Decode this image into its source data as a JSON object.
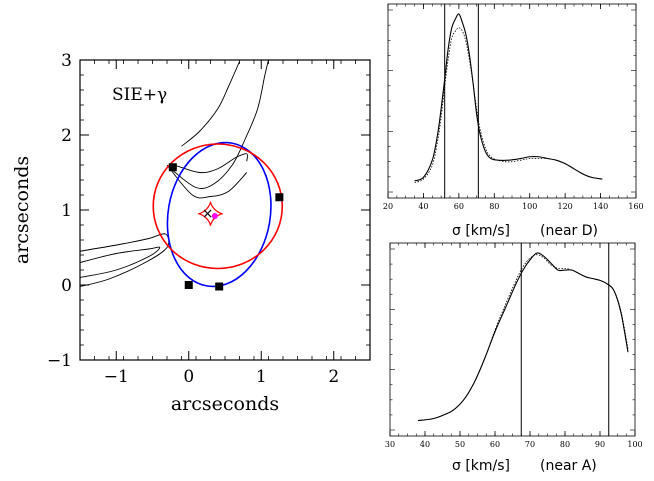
{
  "chart_data": [
    {
      "type": "scatter",
      "panel": "lens-model",
      "title": "SIE+γ",
      "xlabel": "arcseconds",
      "ylabel": "arcseconds",
      "xlim": [
        -1.5,
        2.5
      ],
      "ylim": [
        -1,
        3
      ],
      "x_ticks": [
        -1,
        0,
        1,
        2
      ],
      "y_ticks": [
        -1,
        0,
        1,
        2,
        3
      ],
      "x_tick_labels": [
        "−1",
        "0",
        "1",
        "2"
      ],
      "y_tick_labels": [
        "−1",
        "0",
        "1",
        "2",
        "3"
      ],
      "images": [
        {
          "x": -0.22,
          "y": 1.57
        },
        {
          "x": 1.25,
          "y": 1.17
        },
        {
          "x": 0.0,
          "y": 0.0
        },
        {
          "x": 0.42,
          "y": -0.02
        }
      ],
      "galaxy_center": {
        "x": 0.26,
        "y": 0.96,
        "marker": "×"
      },
      "source_position": {
        "x": 0.36,
        "y": 0.92,
        "color": "#ff00ff"
      },
      "critical_curve": {
        "color": "#ff0000",
        "cx": 0.4,
        "cy": 1.05,
        "rx": 0.89,
        "ry": 0.83,
        "tilt_deg": 0
      },
      "caustic": {
        "color": "#ff0000",
        "cx": 0.3,
        "cy": 0.95,
        "size": 0.17
      },
      "blue_curve": {
        "color": "#0000ff",
        "cx": 0.42,
        "cy": 0.94,
        "rx": 1.0,
        "ry": 0.68,
        "tilt_deg": 80
      },
      "arc_contours": [
        {
          "name": "upper-arc",
          "points": [
            [
              -0.25,
              1.55
            ],
            [
              0.1,
              1.3
            ],
            [
              0.35,
              1.35
            ],
            [
              0.6,
              1.6
            ],
            [
              0.78,
              1.95
            ],
            [
              0.95,
              2.35
            ],
            [
              1.05,
              2.8
            ],
            [
              1.1,
              3.0
            ]
          ]
        },
        {
          "name": "upper-arc-inner",
          "points": [
            [
              -0.2,
              1.6
            ],
            [
              0.15,
              1.5
            ],
            [
              0.4,
              1.55
            ],
            [
              0.65,
              1.7
            ],
            [
              0.8,
              1.75
            ],
            [
              0.8,
              1.65
            ]
          ]
        },
        {
          "name": "upper-arc-outer",
          "points": [
            [
              -0.3,
              1.6
            ],
            [
              0.05,
              1.2
            ],
            [
              0.3,
              1.18
            ],
            [
              0.55,
              1.25
            ],
            [
              0.8,
              1.5
            ]
          ]
        },
        {
          "name": "top-contour",
          "points": [
            [
              -0.1,
              1.85
            ],
            [
              0.15,
              2.05
            ],
            [
              0.4,
              2.35
            ],
            [
              0.55,
              2.65
            ],
            [
              0.7,
              2.98
            ]
          ]
        },
        {
          "name": "left-arc-1",
          "points": [
            [
              -1.5,
              0.45
            ],
            [
              -0.9,
              0.55
            ],
            [
              -0.55,
              0.62
            ],
            [
              -0.32,
              0.68
            ],
            [
              -0.3,
              0.5
            ],
            [
              -0.6,
              0.3
            ],
            [
              -1.1,
              0.08
            ],
            [
              -1.5,
              -0.02
            ]
          ]
        },
        {
          "name": "left-arc-2",
          "points": [
            [
              -1.5,
              0.3
            ],
            [
              -1.0,
              0.42
            ],
            [
              -0.55,
              0.48
            ],
            [
              -0.4,
              0.5
            ],
            [
              -0.55,
              0.38
            ],
            [
              -1.0,
              0.2
            ],
            [
              -1.5,
              0.1
            ]
          ]
        }
      ]
    },
    {
      "type": "line",
      "panel": "top-right",
      "xlabel": "σ [km/s]",
      "annotation": "(near D)",
      "xlim": [
        20,
        160
      ],
      "x_ticks": [
        20,
        40,
        60,
        80,
        100,
        120,
        140,
        160
      ],
      "x_tick_labels": [
        "20",
        "40",
        "60",
        "80",
        "100",
        "120",
        "140",
        "160"
      ],
      "ylim": [
        0,
        1
      ],
      "vertical_lines": [
        52,
        71
      ],
      "series": [
        {
          "name": "solid",
          "style": "solid",
          "x": [
            35,
            40,
            45,
            48,
            50,
            52,
            54,
            56,
            58,
            60,
            62,
            64,
            66,
            68,
            70,
            72,
            75,
            78,
            82,
            88,
            95,
            100,
            105,
            110,
            115,
            120,
            125,
            130,
            135,
            141
          ],
          "y": [
            0.03,
            0.05,
            0.15,
            0.3,
            0.45,
            0.62,
            0.8,
            0.92,
            0.97,
            1.0,
            0.95,
            0.88,
            0.76,
            0.6,
            0.42,
            0.3,
            0.2,
            0.16,
            0.15,
            0.15,
            0.16,
            0.17,
            0.17,
            0.16,
            0.15,
            0.13,
            0.1,
            0.07,
            0.05,
            0.04
          ]
        },
        {
          "name": "dotted",
          "style": "dotted",
          "x": [
            35,
            40,
            45,
            48,
            50,
            52,
            54,
            56,
            58,
            60,
            62,
            64,
            66,
            68,
            70,
            72,
            75,
            78,
            82,
            88,
            95,
            100,
            105,
            110,
            115,
            120,
            125,
            130,
            135,
            141
          ],
          "y": [
            0.02,
            0.04,
            0.12,
            0.26,
            0.4,
            0.58,
            0.74,
            0.86,
            0.9,
            0.92,
            0.9,
            0.84,
            0.73,
            0.6,
            0.45,
            0.33,
            0.22,
            0.17,
            0.15,
            0.14,
            0.15,
            0.16,
            0.16,
            0.16,
            0.15,
            0.13,
            0.1,
            0.07,
            0.05,
            0.04
          ]
        }
      ]
    },
    {
      "type": "line",
      "panel": "bottom-right",
      "xlabel": "σ [km/s]",
      "annotation": "(near A)",
      "xlim": [
        30,
        100
      ],
      "x_ticks": [
        30,
        40,
        50,
        60,
        70,
        80,
        90,
        100
      ],
      "x_tick_labels": [
        "30",
        "40",
        "50",
        "60",
        "70",
        "80",
        "90",
        "100"
      ],
      "ylim": [
        0,
        1
      ],
      "vertical_lines": [
        67.5,
        92.5
      ],
      "series": [
        {
          "name": "solid",
          "style": "solid",
          "x": [
            38,
            42,
            45,
            48,
            51,
            54,
            57,
            60,
            63,
            66,
            68,
            70,
            72,
            74,
            76,
            78,
            80,
            82,
            84,
            86,
            88,
            90,
            92,
            94,
            96,
            98
          ],
          "y": [
            0.02,
            0.03,
            0.05,
            0.08,
            0.14,
            0.24,
            0.38,
            0.54,
            0.68,
            0.82,
            0.9,
            0.96,
            1.0,
            0.98,
            0.94,
            0.9,
            0.9,
            0.9,
            0.88,
            0.86,
            0.85,
            0.84,
            0.82,
            0.78,
            0.65,
            0.42
          ]
        },
        {
          "name": "dotted",
          "style": "dotted",
          "x": [
            38,
            42,
            45,
            48,
            51,
            54,
            57,
            60,
            63,
            66,
            68,
            70,
            72,
            74,
            76,
            78,
            80,
            82,
            84,
            86,
            88,
            90,
            92,
            94,
            96,
            98
          ],
          "y": [
            0.02,
            0.03,
            0.05,
            0.08,
            0.14,
            0.24,
            0.38,
            0.55,
            0.7,
            0.84,
            0.92,
            0.97,
            0.99,
            0.97,
            0.93,
            0.91,
            0.91,
            0.9,
            0.88,
            0.86,
            0.85,
            0.84,
            0.82,
            0.78,
            0.66,
            0.44
          ]
        }
      ]
    }
  ]
}
